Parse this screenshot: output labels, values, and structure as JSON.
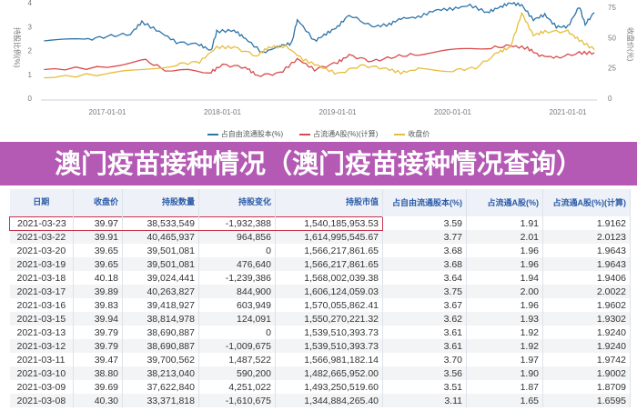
{
  "chart_data": {
    "type": "line",
    "x_ticks": [
      "2017-01-01",
      "2018-01-01",
      "2019-01-01",
      "2020-01-01",
      "2021-01-01"
    ],
    "y_left_ticks": [
      "0",
      "1",
      "2",
      "3",
      "4"
    ],
    "y_right_ticks": [
      "0",
      "25",
      "50",
      "75"
    ],
    "ylabel_left": "持股比例(%)",
    "ylabel_right": "收盘价(元)",
    "ylim_left": [
      0,
      4
    ],
    "ylim_right": [
      0,
      75
    ],
    "series": [
      {
        "name": "占自由流通股本(%)",
        "color": "#2d74a8",
        "axis": "left",
        "x": [
          2016.45,
          2016.8,
          2017.0,
          2017.2,
          2017.3,
          2017.45,
          2017.6,
          2017.8,
          2017.9,
          2017.95,
          2018.1,
          2018.2,
          2018.35,
          2018.5,
          2018.6,
          2018.65,
          2018.8,
          2018.9,
          2019.0,
          2019.1,
          2019.3,
          2019.45,
          2019.55,
          2019.7,
          2019.85,
          2020.0,
          2020.15,
          2020.3,
          2020.4,
          2020.5,
          2020.6,
          2020.7,
          2020.8,
          2020.9,
          2021.0,
          2021.1,
          2021.15,
          2021.23
        ],
        "y": [
          2.4,
          2.45,
          2.6,
          2.7,
          3.2,
          2.8,
          2.35,
          2.25,
          2.0,
          2.8,
          2.85,
          2.5,
          1.9,
          2.2,
          2.3,
          3.3,
          2.4,
          2.7,
          3.0,
          3.5,
          3.0,
          3.1,
          3.35,
          3.4,
          3.7,
          3.75,
          3.9,
          3.6,
          3.8,
          4.0,
          3.9,
          3.3,
          3.5,
          3.0,
          3.0,
          3.85,
          3.1,
          3.59
        ]
      },
      {
        "name": "占流通A股(%)(计算)",
        "color": "#d94b4b",
        "axis": "left",
        "x": [
          2016.45,
          2017.0,
          2017.3,
          2017.5,
          2017.9,
          2018.0,
          2018.2,
          2018.3,
          2018.5,
          2018.65,
          2018.8,
          2019.0,
          2019.1,
          2019.3,
          2019.5,
          2019.7,
          2020.0,
          2020.3,
          2020.5,
          2020.65,
          2020.75,
          2020.9,
          2021.1,
          2021.23
        ],
        "y": [
          1.2,
          1.3,
          1.65,
          1.2,
          1.1,
          1.4,
          1.3,
          0.95,
          1.05,
          1.65,
          1.2,
          1.5,
          1.8,
          1.55,
          1.75,
          1.85,
          2.0,
          2.1,
          2.2,
          2.1,
          1.8,
          1.7,
          1.9,
          1.91
        ]
      },
      {
        "name": "收盘价",
        "color": "#e6be3c",
        "axis": "right",
        "x": [
          2016.45,
          2017.0,
          2017.3,
          2017.6,
          2017.8,
          2017.95,
          2018.1,
          2018.3,
          2018.4,
          2018.55,
          2018.7,
          2018.85,
          2019.0,
          2019.2,
          2019.4,
          2019.55,
          2019.7,
          2020.0,
          2020.2,
          2020.4,
          2020.5,
          2020.6,
          2020.7,
          2020.8,
          2021.0,
          2021.1,
          2021.23
        ],
        "y": [
          17,
          20,
          23,
          28,
          30,
          42,
          42,
          35,
          42,
          43,
          32,
          26,
          20,
          27,
          25,
          21,
          24,
          23,
          25,
          38,
          42,
          70,
          52,
          55,
          55,
          48,
          39.97
        ]
      }
    ]
  },
  "overlay_title": "澳门疫苗接种情况（澳门疫苗接种情况查询）",
  "table": {
    "headers": [
      "日期",
      "收盘价",
      "持股数量",
      "持股变化",
      "持股市值",
      "占自由流通股本(%)",
      "占流通A股(%)",
      "占流通A股(%)(计算)"
    ],
    "rows": [
      [
        "2021-03-23",
        "39.97",
        "38,533,549",
        "-1,932,388",
        "1,540,185,953.53",
        "3.59",
        "1.91",
        "1.9162"
      ],
      [
        "2021-03-22",
        "39.91",
        "40,465,937",
        "964,856",
        "1,614,995,545.67",
        "3.77",
        "2.01",
        "2.0123"
      ],
      [
        "2021-03-20",
        "39.65",
        "39,501,081",
        "0",
        "1,566,217,861.65",
        "3.68",
        "1.96",
        "1.9643"
      ],
      [
        "2021-03-19",
        "39.65",
        "39,501,081",
        "476,640",
        "1,566,217,861.65",
        "3.68",
        "1.96",
        "1.9643"
      ],
      [
        "2021-03-18",
        "40.18",
        "39,024,441",
        "-1,239,386",
        "1,568,002,039.38",
        "3.64",
        "1.94",
        "1.9406"
      ],
      [
        "2021-03-17",
        "39.89",
        "40,263,827",
        "844,900",
        "1,606,124,059.03",
        "3.75",
        "2.00",
        "2.0022"
      ],
      [
        "2021-03-16",
        "39.83",
        "39,418,927",
        "603,949",
        "1,570,055,862.41",
        "3.67",
        "1.96",
        "1.9602"
      ],
      [
        "2021-03-15",
        "39.94",
        "38,814,978",
        "124,091",
        "1,550,270,221.32",
        "3.62",
        "1.93",
        "1.9302"
      ],
      [
        "2021-03-13",
        "39.79",
        "38,690,887",
        "0",
        "1,539,510,393.73",
        "3.61",
        "1.92",
        "1.9240"
      ],
      [
        "2021-03-12",
        "39.79",
        "38,690,887",
        "-1,009,675",
        "1,539,510,393.73",
        "3.61",
        "1.92",
        "1.9240"
      ],
      [
        "2021-03-11",
        "39.47",
        "39,700,562",
        "1,487,522",
        "1,566,981,182.14",
        "3.70",
        "1.97",
        "1.9742"
      ],
      [
        "2021-03-10",
        "38.80",
        "38,213,040",
        "590,200",
        "1,482,665,952.00",
        "3.56",
        "1.90",
        "1.9002"
      ],
      [
        "2021-03-09",
        "39.69",
        "37,622,840",
        "4,251,022",
        "1,493,250,519.60",
        "3.51",
        "1.87",
        "1.8709"
      ],
      [
        "2021-03-08",
        "40.30",
        "33,371,818",
        "-1,610,675",
        "1,344,884,265.40",
        "3.11",
        "1.65",
        "1.6595"
      ]
    ]
  }
}
